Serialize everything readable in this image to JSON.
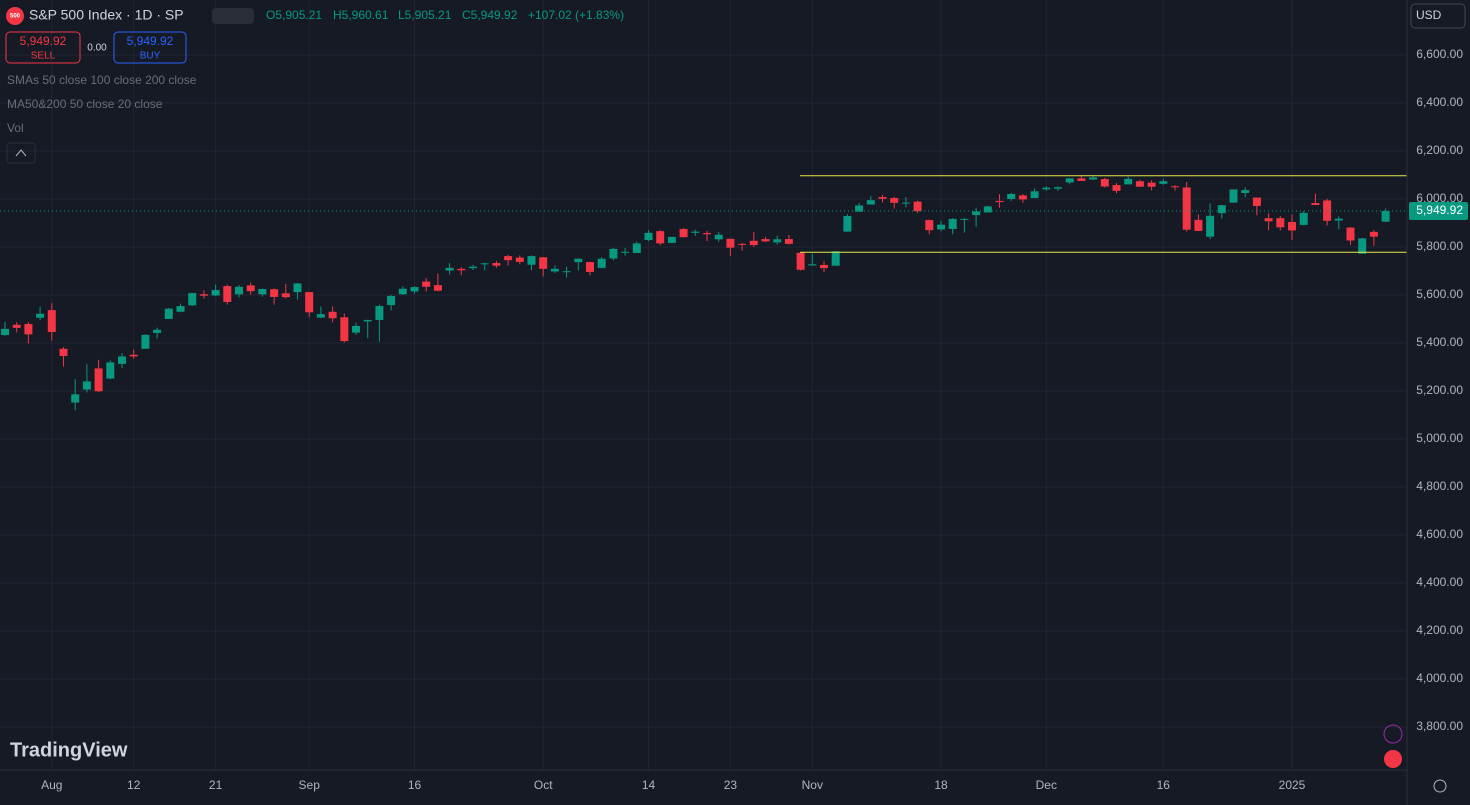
{
  "chart_data": {
    "type": "candlestick",
    "title": "S&P 500 Index · 1D · SP",
    "ohlc_text": {
      "open": "O5,905.21",
      "high": "H5,960.61",
      "low": "L5,905.21",
      "close": "C5,949.92",
      "change": "+107.02 (+1.83%)"
    },
    "categories": [
      null,
      null,
      null,
      null,
      "Aug",
      null,
      null,
      null,
      null,
      null,
      null,
      "12",
      null,
      null,
      null,
      null,
      null,
      null,
      "21",
      null,
      null,
      null,
      null,
      null,
      null,
      null,
      "Sep",
      null,
      null,
      null,
      null,
      null,
      null,
      null,
      null,
      "16",
      null,
      null,
      null,
      null,
      null,
      null,
      null,
      null,
      null,
      null,
      "Oct",
      null,
      null,
      null,
      null,
      null,
      null,
      null,
      null,
      "14",
      null,
      null,
      null,
      null,
      null,
      null,
      "23",
      null,
      null,
      null,
      null,
      null,
      null,
      "Nov",
      null,
      null,
      null,
      null,
      null,
      null,
      null,
      null,
      null,
      null,
      "18",
      null,
      null,
      null,
      null,
      null,
      null,
      null,
      null,
      "Dec",
      null,
      null,
      null,
      null,
      null,
      null,
      null,
      null,
      null,
      "16",
      null,
      null,
      null,
      null,
      null,
      null,
      null,
      null,
      null,
      null,
      "2025",
      null,
      null,
      null,
      null,
      null,
      null,
      null,
      null
    ],
    "open": [
      5433,
      5476,
      5479,
      5505,
      5537,
      5376,
      5152,
      5206,
      5294,
      5252,
      5313,
      5351,
      5376,
      5442,
      5500,
      5530,
      5557,
      5603,
      5598,
      5637,
      5603,
      5640,
      5603,
      5624,
      5607,
      5612,
      5612,
      5506,
      5530,
      5507,
      5443,
      5490,
      5496,
      5558,
      5603,
      5615,
      5656,
      5641,
      5702,
      5709,
      5712,
      5732,
      5733,
      5762,
      5756,
      5726,
      5757,
      5698,
      5698,
      5737,
      5737,
      5713,
      5752,
      5778,
      5775,
      5829,
      5866,
      5817,
      5875,
      5859,
      5858,
      5832,
      5834,
      5813,
      5826,
      5833,
      5819,
      5833,
      5776,
      5723,
      5725,
      5722,
      5864,
      5947,
      5977,
      6008,
      6004,
      5985,
      5989,
      5912,
      5873,
      5875,
      5917,
      5933,
      5944,
      5992,
      6000,
      6015,
      6004,
      6040,
      6043,
      6069,
      6086,
      6081,
      6083,
      6058,
      6061,
      6074,
      6068,
      6063,
      6053,
      6048,
      5913,
      5843,
      5941,
      5985,
      6025,
      6006,
      5920,
      5920,
      5904,
      5892,
      5983,
      5994,
      5910,
      5881,
      5772,
      5863,
      5905.21
    ],
    "high": [
      5488,
      5487,
      5487,
      5551,
      5566,
      5383,
      5250,
      5312,
      5330,
      5328,
      5358,
      5372,
      5436,
      5464,
      5546,
      5564,
      5609,
      5620,
      5643,
      5643,
      5641,
      5651,
      5627,
      5627,
      5646,
      5651,
      5613,
      5552,
      5552,
      5522,
      5485,
      5497,
      5560,
      5600,
      5636,
      5637,
      5671,
      5690,
      5733,
      5716,
      5725,
      5735,
      5742,
      5767,
      5765,
      5765,
      5758,
      5723,
      5718,
      5753,
      5739,
      5758,
      5796,
      5796,
      5822,
      5871,
      5870,
      5843,
      5879,
      5872,
      5867,
      5863,
      5834,
      5817,
      5862,
      5842,
      5847,
      5850,
      5776,
      5772,
      5741,
      5783,
      5936,
      5983,
      6012,
      6017,
      6009,
      6008,
      5993,
      5915,
      5909,
      5920,
      5920,
      5963,
      5972,
      6020,
      6025,
      6020,
      6044,
      6053,
      6052,
      6087,
      6099,
      6099,
      6088,
      6066,
      6093,
      6080,
      6078,
      6085,
      6057,
      6071,
      5935,
      5982,
      5975,
      6040,
      6049,
      6006,
      5941,
      5929,
      5935,
      5950,
      6022,
      6000,
      5927,
      5882,
      5838,
      5871,
      5960.61
    ],
    "low": [
      5430,
      5444,
      5398,
      5495,
      5410,
      5302,
      5120,
      5194,
      5196,
      5249,
      5296,
      5335,
      5376,
      5420,
      5500,
      5528,
      5554,
      5585,
      5595,
      5560,
      5590,
      5602,
      5593,
      5560,
      5585,
      5581,
      5509,
      5504,
      5486,
      5402,
      5434,
      5420,
      5406,
      5536,
      5601,
      5605,
      5615,
      5615,
      5686,
      5683,
      5704,
      5703,
      5713,
      5723,
      5728,
      5703,
      5677,
      5691,
      5673,
      5702,
      5683,
      5711,
      5745,
      5764,
      5775,
      5825,
      5807,
      5815,
      5840,
      5846,
      5825,
      5822,
      5762,
      5784,
      5800,
      5822,
      5810,
      5810,
      5702,
      5723,
      5696,
      5722,
      5864,
      5947,
      5977,
      5986,
      5960,
      5965,
      5942,
      5853,
      5865,
      5853,
      5860,
      5884,
      5944,
      5963,
      5992,
      5984,
      6004,
      6034,
      6033,
      6061,
      6075,
      6079,
      6048,
      6024,
      6060,
      6051,
      6036,
      6059,
      6035,
      5865,
      5866,
      5832,
      5919,
      5984,
      6007,
      5932,
      5869,
      5869,
      5829,
      5890,
      5975,
      5890,
      5874,
      5809,
      5773,
      5805,
      5905.21
    ],
    "close": [
      5459,
      5463,
      5436,
      5522,
      5446,
      5346,
      5186,
      5240,
      5199,
      5319,
      5344,
      5344,
      5434,
      5455,
      5543,
      5554,
      5608,
      5597,
      5621,
      5571,
      5634,
      5616,
      5625,
      5592,
      5591,
      5648,
      5528,
      5520,
      5503,
      5408,
      5471,
      5496,
      5554,
      5596,
      5626,
      5633,
      5634,
      5618,
      5713,
      5703,
      5718,
      5732,
      5722,
      5745,
      5738,
      5762,
      5709,
      5709,
      5699,
      5751,
      5696,
      5751,
      5792,
      5780,
      5815,
      5859,
      5815,
      5842,
      5841,
      5864,
      5853,
      5851,
      5797,
      5809,
      5808,
      5823,
      5832,
      5813,
      5705,
      5728,
      5712,
      5782,
      5929,
      5973,
      5995,
      6001,
      5984,
      5985,
      5949,
      5870,
      5893,
      5917,
      5917,
      5948,
      5969,
      5987,
      6021,
      5998,
      6032,
      6047,
      6049,
      6086,
      6075,
      6090,
      6052,
      6034,
      6084,
      6051,
      6051,
      6074,
      6050,
      5872,
      5867,
      5930,
      5974,
      6040,
      6037,
      5971,
      5907,
      5882,
      5869,
      5942,
      5975,
      5909,
      5918,
      5827,
      5836,
      5843,
      5949.92
    ],
    "up_color": "#089981",
    "down_color": "#f23645",
    "ylim": [
      3621,
      6829
    ],
    "yticks": [
      {
        "value": 3800,
        "label": "3,800.00"
      },
      {
        "value": 4000,
        "label": "4,000.00"
      },
      {
        "value": 4200,
        "label": "4,200.00"
      },
      {
        "value": 4400,
        "label": "4,400.00"
      },
      {
        "value": 4600,
        "label": "4,600.00"
      },
      {
        "value": 4800,
        "label": "4,800.00"
      },
      {
        "value": 5000,
        "label": "5,000.00"
      },
      {
        "value": 5200,
        "label": "5,200.00"
      },
      {
        "value": 5400,
        "label": "5,400.00"
      },
      {
        "value": 5600,
        "label": "5,600.00"
      },
      {
        "value": 5800,
        "label": "5,800.00"
      },
      {
        "value": 6000,
        "label": "6,000.00"
      },
      {
        "value": 6200,
        "label": "6,200.00"
      },
      {
        "value": 6400,
        "label": "6,400.00"
      },
      {
        "value": 6600,
        "label": "6,600.00"
      }
    ],
    "grid": true,
    "last_price": {
      "value": 5949.92,
      "label": "5,949.92"
    },
    "horizontal_lines": [
      {
        "value": 6097,
        "color": "#e8e84a"
      },
      {
        "value": 5778,
        "color": "#e8e84a"
      }
    ]
  },
  "toolbar": {
    "sell_price": "5,949.92",
    "sell": "SELL",
    "spread": "0.00",
    "buy_price": "5,949.92",
    "buy": "BUY",
    "currency": "USD",
    "indicators": [
      "SMAs 50 close 100 close 200 close",
      "MA50&200 50 close 20 close",
      "Vol"
    ],
    "logo": "TradingView",
    "symbol_badge": "500"
  }
}
